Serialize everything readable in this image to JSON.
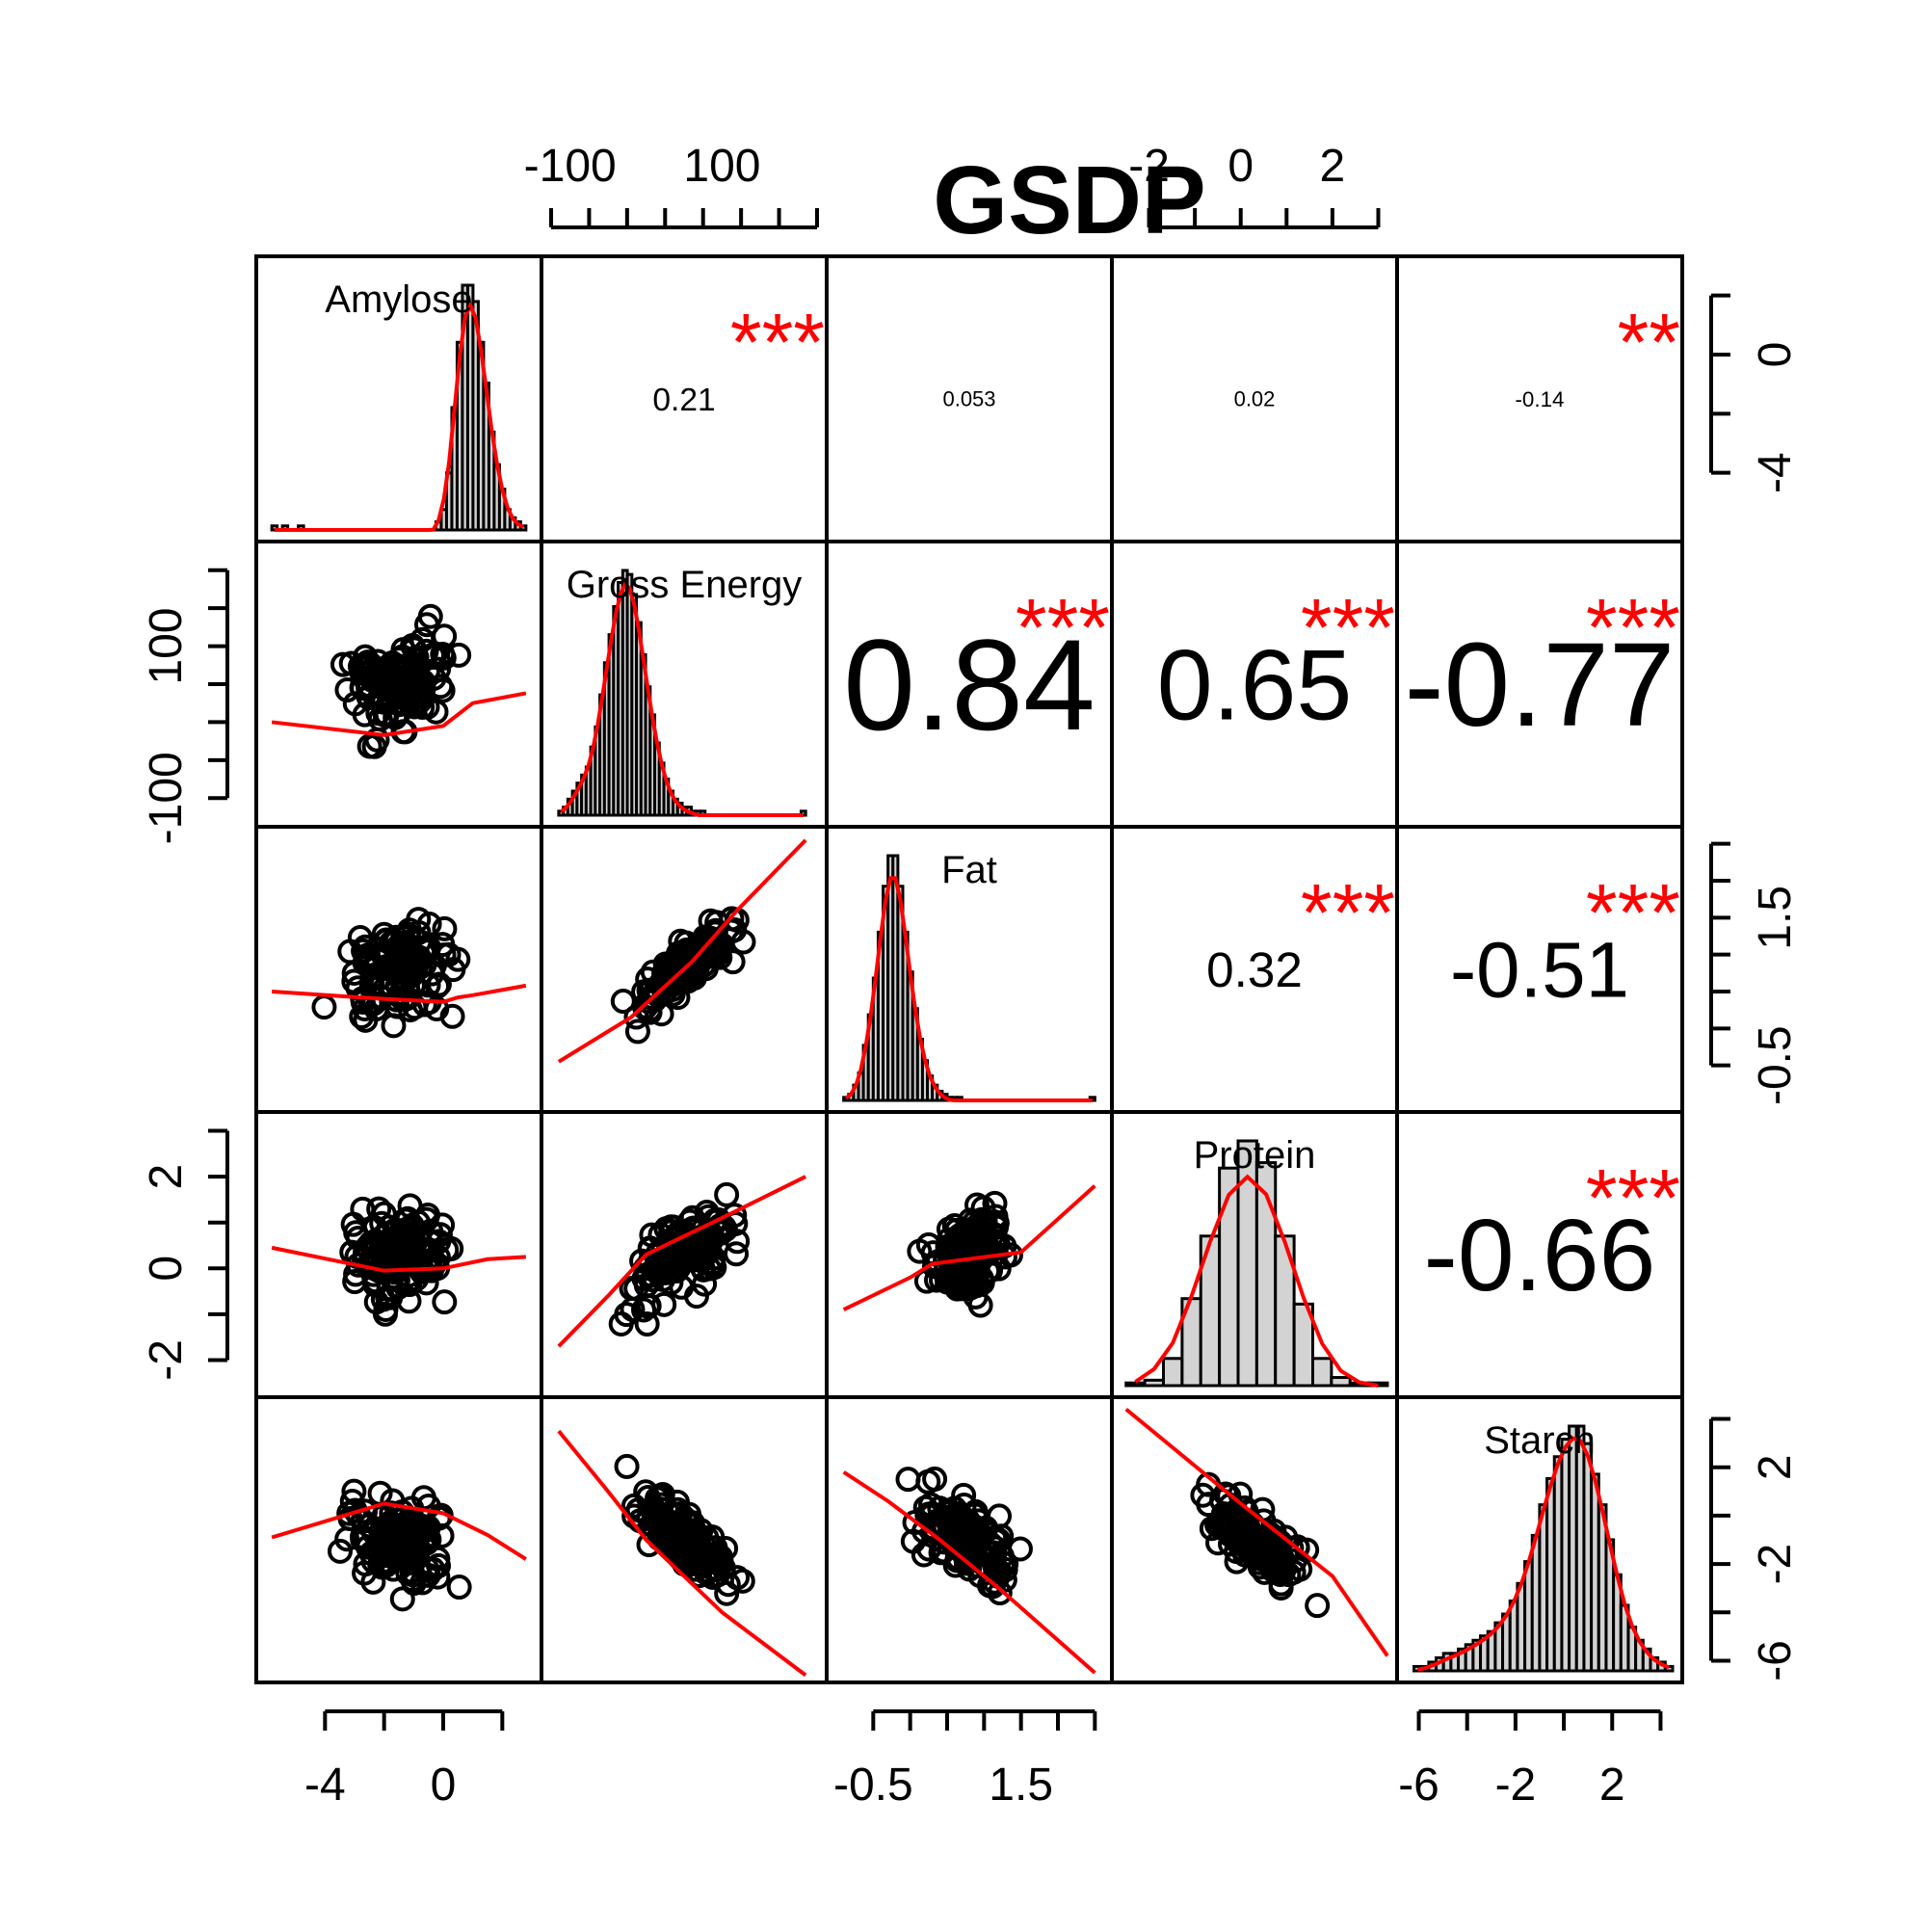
{
  "chart_data": {
    "type": "scatter-matrix",
    "title": "GSDP",
    "variables": [
      "Amylose",
      "Gross Energy",
      "Fat",
      "Protein",
      "Starch"
    ],
    "ranges": [
      [
        -6,
        3
      ],
      [
        -125,
        225
      ],
      [
        -1,
        2.6
      ],
      [
        -2.6,
        3.2
      ],
      [
        -6.5,
        4.5
      ]
    ],
    "histograms": [
      {
        "edges": [
          -5.8,
          2.8
        ],
        "counts": [
          1,
          0,
          1,
          0,
          0,
          1,
          0,
          0,
          0,
          0,
          0,
          0,
          0,
          0,
          0,
          0,
          0,
          0,
          0,
          0,
          0,
          0,
          0,
          0,
          0,
          0,
          0,
          0,
          0,
          0,
          0,
          2,
          5,
          14,
          30,
          46,
          60,
          60,
          56,
          46,
          36,
          24,
          16,
          10,
          5,
          3,
          2,
          1
        ]
      },
      {
        "edges": [
          -115,
          210
        ],
        "counts": [
          1,
          2,
          4,
          6,
          8,
          10,
          12,
          17,
          22,
          30,
          38,
          45,
          52,
          58,
          61,
          60,
          55,
          48,
          40,
          32,
          25,
          18,
          13,
          9,
          6,
          4,
          3,
          2,
          2,
          1,
          1,
          1,
          0,
          0,
          0,
          0,
          0,
          0,
          0,
          0,
          0,
          0,
          0,
          0,
          0,
          0,
          0,
          0,
          0,
          0,
          0,
          0,
          0,
          1
        ]
      },
      {
        "edges": [
          -0.9,
          2.5
        ],
        "counts": [
          1,
          2,
          5,
          9,
          18,
          28,
          40,
          55,
          70,
          80,
          80,
          70,
          55,
          42,
          30,
          20,
          13,
          8,
          5,
          3,
          2,
          1,
          1,
          1,
          0,
          0,
          0,
          0,
          0,
          0,
          0,
          0,
          0,
          0,
          0,
          0,
          0,
          0,
          0,
          0,
          0,
          0,
          0,
          0,
          0,
          0,
          0,
          0,
          0,
          0,
          1
        ]
      },
      {
        "edges": [
          -2.5,
          3.2
        ],
        "counts": [
          1,
          2,
          10,
          32,
          55,
          80,
          90,
          82,
          55,
          30,
          10,
          3,
          1,
          1
        ]
      },
      {
        "edges": [
          -6.2,
          4.5
        ],
        "counts": [
          1,
          1,
          2,
          3,
          4,
          4,
          5,
          6,
          7,
          8,
          9,
          11,
          13,
          16,
          20,
          25,
          31,
          38,
          44,
          49,
          53,
          56,
          56,
          52,
          45,
          38,
          30,
          22,
          15,
          10,
          7,
          5,
          3,
          2,
          1
        ]
      }
    ],
    "correlations": [
      {
        "pair": [
          "Amylose",
          "Gross Energy"
        ],
        "r": "0.21",
        "stars": "***"
      },
      {
        "pair": [
          "Amylose",
          "Fat"
        ],
        "r": "0.053",
        "stars": ""
      },
      {
        "pair": [
          "Amylose",
          "Protein"
        ],
        "r": "0.02",
        "stars": ""
      },
      {
        "pair": [
          "Amylose",
          "Starch"
        ],
        "r": "-0.14",
        "stars": "**"
      },
      {
        "pair": [
          "Gross Energy",
          "Fat"
        ],
        "r": "0.84",
        "stars": "***"
      },
      {
        "pair": [
          "Gross Energy",
          "Protein"
        ],
        "r": "0.65",
        "stars": "***"
      },
      {
        "pair": [
          "Gross Energy",
          "Starch"
        ],
        "r": "-0.77",
        "stars": "***"
      },
      {
        "pair": [
          "Fat",
          "Protein"
        ],
        "r": "0.32",
        "stars": "***"
      },
      {
        "pair": [
          "Fat",
          "Starch"
        ],
        "r": "-0.51",
        "stars": "***"
      },
      {
        "pair": [
          "Protein",
          "Starch"
        ],
        "r": "-0.66",
        "stars": "***"
      }
    ],
    "axes": {
      "top": [
        {
          "column": "Gross Energy",
          "ticks": [
            -125,
            -75,
            -25,
            25,
            75,
            125,
            175,
            225
          ],
          "labels": [
            {
              "value": -100,
              "text": "-100"
            },
            {
              "value": 100,
              "text": "100"
            }
          ]
        },
        {
          "column": "Protein",
          "ticks": [
            -2,
            -1,
            0,
            1,
            2,
            3
          ],
          "labels": [
            {
              "value": -2,
              "text": "-2"
            },
            {
              "value": 0,
              "text": "0"
            },
            {
              "value": 2,
              "text": "2"
            }
          ]
        }
      ],
      "bottom": [
        {
          "column": "Amylose",
          "ticks": [
            -4,
            -2,
            0,
            2
          ],
          "labels": [
            {
              "value": -4,
              "text": "-4"
            },
            {
              "value": 0,
              "text": "0"
            }
          ]
        },
        {
          "column": "Fat",
          "ticks": [
            -0.5,
            0,
            0.5,
            1,
            1.5,
            2,
            2.5
          ],
          "labels": [
            {
              "value": -0.5,
              "text": "-0.5"
            },
            {
              "value": 1.5,
              "text": "1.5"
            }
          ]
        },
        {
          "column": "Starch",
          "ticks": [
            -6,
            -4,
            -2,
            0,
            2,
            4
          ],
          "labels": [
            {
              "value": -6,
              "text": "-6"
            },
            {
              "value": -2,
              "text": "-2"
            },
            {
              "value": 2,
              "text": "2"
            }
          ]
        }
      ],
      "left": [
        {
          "row": "Gross Energy",
          "ticks": [
            -100,
            -50,
            0,
            50,
            100,
            150,
            200
          ],
          "labels": [
            {
              "value": -100,
              "text": "-100"
            },
            {
              "value": 100,
              "text": "100"
            }
          ]
        },
        {
          "row": "Protein",
          "ticks": [
            -2,
            -1,
            0,
            1,
            2,
            3
          ],
          "labels": [
            {
              "value": -2,
              "text": "-2"
            },
            {
              "value": 0,
              "text": "0"
            },
            {
              "value": 2,
              "text": "2"
            }
          ]
        }
      ],
      "right": [
        {
          "row": "Amylose",
          "ticks": [
            2,
            0,
            -2,
            -4
          ],
          "labels": [
            {
              "value": 0,
              "text": "0"
            },
            {
              "value": -4,
              "text": "-4"
            }
          ]
        },
        {
          "row": "Fat",
          "ticks": [
            2.5,
            2,
            1.5,
            1,
            0.5,
            0,
            -0.5
          ],
          "labels": [
            {
              "value": 1.5,
              "text": "1.5"
            },
            {
              "value": -0.5,
              "text": "-0.5"
            }
          ]
        },
        {
          "row": "Starch",
          "ticks": [
            4,
            2,
            0,
            -2,
            -4,
            -6
          ],
          "labels": [
            {
              "value": 2,
              "text": "2"
            },
            {
              "value": -2,
              "text": "-2"
            },
            {
              "value": -6,
              "text": "-6"
            }
          ]
        }
      ]
    },
    "colors": {
      "points": "#000000",
      "smooth_line": "#ff0000",
      "bars": "#d3d3d3",
      "stars": "#ff0000"
    },
    "smooth_lines": [
      {
        "x": "Amylose",
        "y": "Gross Energy",
        "points": [
          [
            -5.8,
            0
          ],
          [
            -2,
            -17
          ],
          [
            0,
            -5
          ],
          [
            0.5,
            10
          ],
          [
            1,
            25
          ],
          [
            2.8,
            38
          ]
        ]
      },
      {
        "x": "Amylose",
        "y": "Fat",
        "points": [
          [
            -5.8,
            0.5
          ],
          [
            -2,
            0.4
          ],
          [
            0,
            0.36
          ],
          [
            0.5,
            0.42
          ],
          [
            1,
            0.45
          ],
          [
            2.8,
            0.58
          ]
        ]
      },
      {
        "x": "Gross Energy",
        "y": "Fat",
        "points": [
          [
            -115,
            -0.45
          ],
          [
            -20,
            0.15
          ],
          [
            60,
            0.9
          ],
          [
            120,
            1.6
          ],
          [
            210,
            2.55
          ]
        ]
      },
      {
        "x": "Amylose",
        "y": "Protein",
        "points": [
          [
            -5.8,
            0.45
          ],
          [
            -2,
            -0.05
          ],
          [
            0,
            0
          ],
          [
            1.5,
            0.2
          ],
          [
            2.8,
            0.25
          ]
        ]
      },
      {
        "x": "Gross Energy",
        "y": "Protein",
        "points": [
          [
            -115,
            -1.7
          ],
          [
            -50,
            -0.6
          ],
          [
            0,
            0.3
          ],
          [
            50,
            0.7
          ],
          [
            100,
            1.1
          ],
          [
            210,
            2.0
          ]
        ]
      },
      {
        "x": "Fat",
        "y": "Protein",
        "points": [
          [
            -0.9,
            -0.9
          ],
          [
            0,
            -0.2
          ],
          [
            0.3,
            0.1
          ],
          [
            1.5,
            0.35
          ],
          [
            2.5,
            1.8
          ]
        ]
      },
      {
        "x": "Amylose",
        "y": "Starch",
        "points": [
          [
            -5.8,
            -0.9
          ],
          [
            -2,
            0.5
          ],
          [
            0,
            0.1
          ],
          [
            1.5,
            -0.8
          ],
          [
            2.8,
            -1.8
          ]
        ]
      },
      {
        "x": "Gross Energy",
        "y": "Starch",
        "points": [
          [
            -115,
            3.5
          ],
          [
            -50,
            1.0
          ],
          [
            0,
            -1.0
          ],
          [
            50,
            -2.5
          ],
          [
            100,
            -4.0
          ],
          [
            210,
            -6.6
          ]
        ]
      },
      {
        "x": "Fat",
        "y": "Starch",
        "points": [
          [
            -0.9,
            1.8
          ],
          [
            -0.3,
            0.6
          ],
          [
            0.4,
            -1.0
          ],
          [
            1.2,
            -3.0
          ],
          [
            2.5,
            -6.5
          ]
        ]
      },
      {
        "x": "Protein",
        "y": "Starch",
        "points": [
          [
            -2.5,
            4.4
          ],
          [
            0,
            0.5
          ],
          [
            2,
            -2.5
          ],
          [
            3.2,
            -5.8
          ]
        ]
      }
    ]
  }
}
